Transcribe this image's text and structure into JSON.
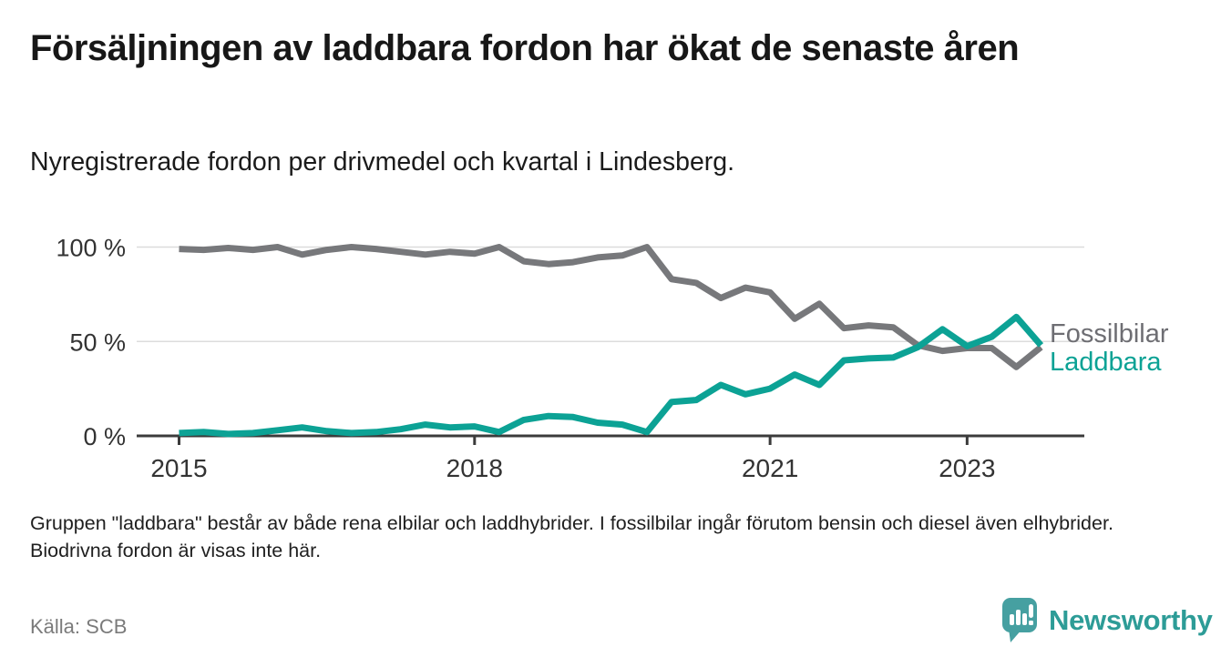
{
  "header": {
    "title": "Försäljningen av laddbara fordon har ökat de senaste åren",
    "subtitle": "Nyregistrerade fordon per drivmedel och kvartal i Lindesberg."
  },
  "chart_data": {
    "type": "line",
    "title": "Försäljningen av laddbara fordon har ökat de senaste åren",
    "xlabel": "",
    "ylabel": "",
    "xlim": [
      2014.57,
      2024.19
    ],
    "ylim": [
      0,
      100
    ],
    "grid": "horizontal",
    "legend_position": "right-end-labels",
    "x_unit": "quarter",
    "y_unit": "percent",
    "x": [
      2015,
      2015.25,
      2015.5,
      2015.75,
      2016,
      2016.25,
      2016.5,
      2016.75,
      2017,
      2017.25,
      2017.5,
      2017.75,
      2018,
      2018.25,
      2018.5,
      2018.75,
      2019,
      2019.25,
      2019.5,
      2019.75,
      2020,
      2020.25,
      2020.5,
      2020.75,
      2021,
      2021.25,
      2021.5,
      2021.75,
      2022,
      2022.25,
      2022.5,
      2022.75,
      2023,
      2023.25,
      2023.5,
      2023.75
    ],
    "series": [
      {
        "name": "Fossilbilar",
        "color": "#77787b",
        "label_color": "#6e6e73",
        "values": [
          99,
          98.5,
          99.5,
          98.5,
          100,
          96,
          98.5,
          100,
          99,
          97.5,
          96,
          97.5,
          96.5,
          100,
          92.5,
          91,
          92,
          94.5,
          95.5,
          100,
          83,
          81,
          73,
          78.5,
          76,
          62,
          70,
          57,
          58.5,
          57.5,
          48,
          45,
          46.5,
          46.5,
          36.5,
          47
        ]
      },
      {
        "name": "Laddbara",
        "color": "#0ca295",
        "label_color": "#0ca295",
        "values": [
          1.5,
          2,
          1,
          1.5,
          3,
          4.5,
          2.5,
          1.5,
          2,
          3.5,
          6,
          4.5,
          5,
          2,
          8.5,
          10.5,
          10,
          7,
          6,
          2,
          18,
          19,
          27,
          22,
          25,
          32.5,
          27,
          40,
          41,
          41.5,
          47,
          56.5,
          47.5,
          52.5,
          63,
          48
        ]
      }
    ],
    "x_ticks": [
      {
        "value": 2015,
        "label": "2015"
      },
      {
        "value": 2018,
        "label": "2018"
      },
      {
        "value": 2021,
        "label": "2021"
      },
      {
        "value": 2023,
        "label": "2023"
      }
    ],
    "y_ticks": [
      {
        "value": 0,
        "label": "0 %"
      },
      {
        "value": 50,
        "label": "50 %"
      },
      {
        "value": 100,
        "label": "100 %"
      }
    ]
  },
  "style": {
    "axis_color": "#3b3b3b",
    "gridline_color": "#dcdcdc",
    "tick_label_color": "#333333"
  },
  "footer": {
    "note": "Gruppen \"laddbara\" består av både rena elbilar och laddhybrider. I fossilbilar ingår förutom bensin och diesel även elhybrider. Biodrivna fordon är visas inte här.",
    "source": "Källa: SCB",
    "logo_text": "Newsworthy",
    "logo_icon": "bar-chart-pin-icon",
    "brand_color": "#2d9c97"
  }
}
